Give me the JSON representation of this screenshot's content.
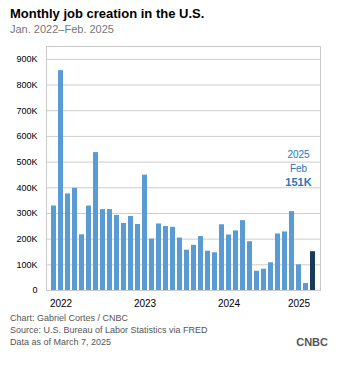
{
  "chart_data": {
    "type": "bar",
    "title": "Monthly job creation in the U.S.",
    "subtitle": "Jan. 2022–Feb. 2025",
    "categories": [
      null,
      "2022",
      null,
      null,
      null,
      null,
      null,
      null,
      null,
      null,
      null,
      null,
      null,
      "2023",
      null,
      null,
      null,
      null,
      null,
      null,
      null,
      null,
      null,
      null,
      null,
      "2024",
      null,
      null,
      null,
      null,
      null,
      null,
      null,
      null,
      null,
      "2025",
      null,
      null
    ],
    "values": [
      329000,
      856000,
      376000,
      398000,
      217000,
      329000,
      537000,
      315000,
      315000,
      292000,
      261000,
      288000,
      257000,
      449000,
      200000,
      259000,
      249000,
      246000,
      204000,
      157000,
      176000,
      210000,
      153000,
      147000,
      256000,
      216000,
      232000,
      272000,
      190000,
      75000,
      83000,
      108000,
      220000,
      228000,
      307000,
      100000,
      27000,
      151000
    ],
    "colors": [
      "#5b9bd5",
      "#5b9bd5",
      "#5b9bd5",
      "#5b9bd5",
      "#5b9bd5",
      "#5b9bd5",
      "#5b9bd5",
      "#5b9bd5",
      "#5b9bd5",
      "#5b9bd5",
      "#5b9bd5",
      "#5b9bd5",
      "#5b9bd5",
      "#5b9bd5",
      "#5b9bd5",
      "#5b9bd5",
      "#5b9bd5",
      "#5b9bd5",
      "#5b9bd5",
      "#5b9bd5",
      "#5b9bd5",
      "#5b9bd5",
      "#5b9bd5",
      "#5b9bd5",
      "#5b9bd5",
      "#5b9bd5",
      "#5b9bd5",
      "#5b9bd5",
      "#5b9bd5",
      "#5b9bd5",
      "#5b9bd5",
      "#5b9bd5",
      "#5b9bd5",
      "#5b9bd5",
      "#5b9bd5",
      "#5b9bd5",
      "#5b9bd5",
      "#1a3a5c"
    ],
    "ylim": [
      0,
      950000
    ],
    "yticks": [
      0,
      {
        "value": 100000,
        "label": "100K"
      },
      {
        "value": 200000,
        "label": "200K"
      },
      {
        "value": 300000,
        "label": "300K"
      },
      {
        "value": 400000,
        "label": "400K"
      },
      {
        "value": 500000,
        "label": "500K"
      },
      {
        "value": 600000,
        "label": "600K"
      },
      {
        "value": 700000,
        "label": "700K"
      },
      {
        "value": 800000,
        "label": "800K"
      },
      {
        "value": 900000,
        "label": "900K"
      }
    ],
    "grid": true,
    "annotations": [
      {
        "text": "2025",
        "color": "#2e75b6"
      },
      {
        "text": "Feb",
        "color": "#2e75b6"
      },
      {
        "text": "151K",
        "color": "#2e75b6"
      }
    ],
    "footer": [
      "Chart: Gabriel Cortes / CNBC",
      "Source: U.S. Bureau of Labor Statistics via FRED",
      "Data as of March 7, 2025"
    ],
    "logo": "CNBC"
  }
}
